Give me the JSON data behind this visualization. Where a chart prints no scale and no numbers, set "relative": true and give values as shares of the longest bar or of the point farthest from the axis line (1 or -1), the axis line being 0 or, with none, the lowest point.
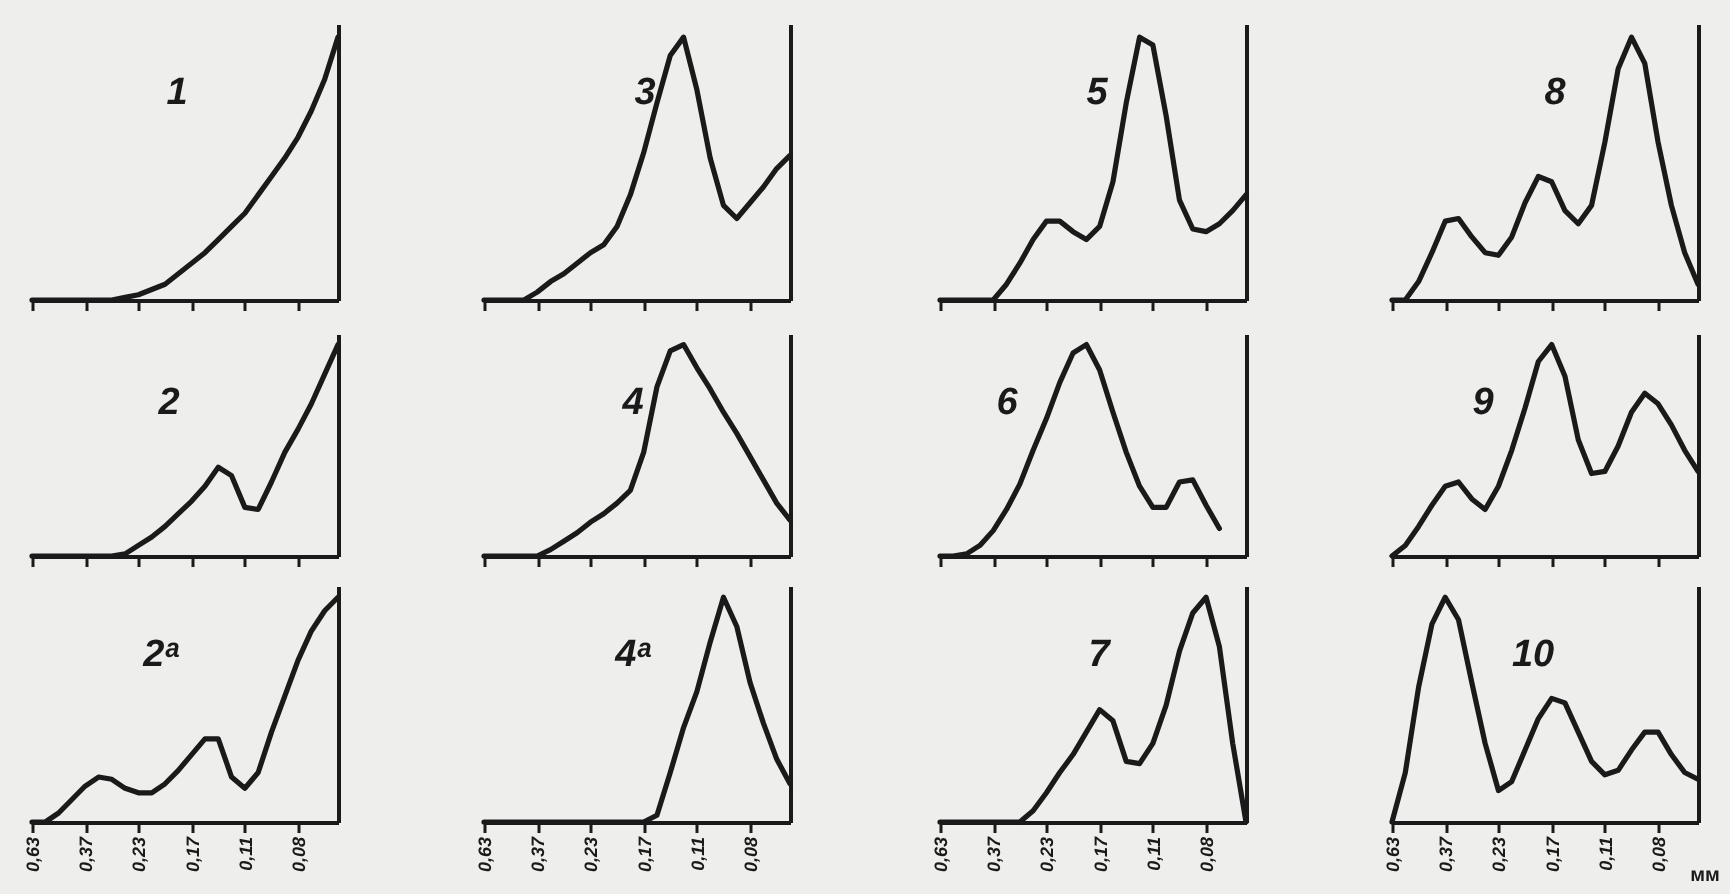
{
  "chart_data": [
    {
      "type": "line",
      "title": "1",
      "relative": true,
      "categories": [
        "0,63",
        null,
        null,
        null,
        "0,37",
        null,
        null,
        null,
        "0,23",
        null,
        null,
        null,
        "0,17",
        null,
        null,
        null,
        "0,11",
        null,
        null,
        null,
        "0,08",
        null,
        null,
        null
      ],
      "tick_labels": false,
      "series": [
        {
          "color": "#1a1a1a",
          "values": [
            0,
            0,
            0,
            0,
            0,
            0,
            0,
            0.01,
            0.02,
            0.04,
            0.06,
            0.1,
            0.14,
            0.18,
            0.23,
            0.28,
            0.33,
            0.4,
            0.47,
            0.54,
            0.62,
            0.72,
            0.84,
            1
          ]
        }
      ]
    },
    {
      "type": "line",
      "title": "3",
      "relative": true,
      "categories": [
        "0,63",
        null,
        null,
        null,
        "0,37",
        null,
        null,
        null,
        "0,23",
        null,
        null,
        null,
        "0,17",
        null,
        null,
        null,
        "0,11",
        null,
        null,
        null,
        "0,08",
        null,
        null,
        null
      ],
      "tick_labels": false,
      "series": [
        {
          "color": "#1a1a1a",
          "values": [
            0,
            0,
            0,
            0,
            0.03,
            0.07,
            0.1,
            0.14,
            0.18,
            0.21,
            0.28,
            0.4,
            0.56,
            0.75,
            0.93,
            1,
            0.8,
            0.54,
            0.36,
            0.31,
            0.37,
            0.43,
            0.5,
            0.55
          ]
        }
      ]
    },
    {
      "type": "line",
      "title": "5",
      "relative": true,
      "categories": [
        "0,63",
        null,
        null,
        null,
        "0,37",
        null,
        null,
        null,
        "0,23",
        null,
        null,
        null,
        "0,17",
        null,
        null,
        null,
        "0,11",
        null,
        null,
        null,
        "0,08",
        null,
        null,
        null
      ],
      "tick_labels": false,
      "series": [
        {
          "color": "#1a1a1a",
          "values": [
            0,
            0,
            0,
            0,
            0,
            0.06,
            0.14,
            0.23,
            0.3,
            0.3,
            0.26,
            0.23,
            0.28,
            0.45,
            0.75,
            1,
            0.97,
            0.7,
            0.38,
            0.27,
            0.26,
            0.29,
            0.34,
            0.4
          ]
        }
      ]
    },
    {
      "type": "line",
      "title": "8",
      "relative": true,
      "categories": [
        "0,63",
        null,
        null,
        null,
        "0,37",
        null,
        null,
        null,
        "0,23",
        null,
        null,
        null,
        "0,17",
        null,
        null,
        null,
        "0,11",
        null,
        null,
        null,
        "0,08",
        null,
        null,
        null
      ],
      "tick_labels": false,
      "series": [
        {
          "color": "#1a1a1a",
          "values": [
            0,
            0,
            0.07,
            0.18,
            0.3,
            0.31,
            0.24,
            0.18,
            0.17,
            0.24,
            0.37,
            0.47,
            0.45,
            0.34,
            0.29,
            0.36,
            0.6,
            0.88,
            1,
            0.9,
            0.6,
            0.36,
            0.18,
            0.06
          ]
        }
      ]
    },
    {
      "type": "line",
      "title": "2",
      "relative": true,
      "categories": [
        "0,63",
        null,
        null,
        null,
        "0,37",
        null,
        null,
        null,
        "0,23",
        null,
        null,
        null,
        "0,17",
        null,
        null,
        null,
        "0,11",
        null,
        null,
        null,
        "0,08",
        null,
        null,
        null
      ],
      "tick_labels": false,
      "series": [
        {
          "color": "#1a1a1a",
          "values": [
            0,
            0,
            0,
            0,
            0,
            0,
            0,
            0.01,
            0.05,
            0.09,
            0.14,
            0.2,
            0.26,
            0.33,
            0.42,
            0.38,
            0.23,
            0.22,
            0.35,
            0.49,
            0.6,
            0.72,
            0.86,
            1
          ]
        }
      ]
    },
    {
      "type": "line",
      "title": "4",
      "relative": true,
      "categories": [
        "0,63",
        null,
        null,
        null,
        "0,37",
        null,
        null,
        null,
        "0,23",
        null,
        null,
        null,
        "0,17",
        null,
        null,
        null,
        "0,11",
        null,
        null,
        null,
        "0,08",
        null,
        null,
        null
      ],
      "tick_labels": false,
      "series": [
        {
          "color": "#1a1a1a",
          "values": [
            0,
            0,
            0,
            0,
            0,
            0.03,
            0.07,
            0.11,
            0.16,
            0.2,
            0.25,
            0.31,
            0.49,
            0.8,
            0.97,
            1,
            0.89,
            0.79,
            0.68,
            0.58,
            0.47,
            0.36,
            0.25,
            0.17
          ]
        }
      ]
    },
    {
      "type": "line",
      "title": "6",
      "relative": true,
      "categories": [
        "0,63",
        null,
        null,
        null,
        "0,37",
        null,
        null,
        null,
        "0,23",
        null,
        null,
        null,
        "0,17",
        null,
        null,
        null,
        "0,11",
        null,
        null,
        null,
        "0,08",
        null,
        null,
        null
      ],
      "tick_labels": false,
      "series": [
        {
          "color": "#1a1a1a",
          "values": [
            0,
            0,
            0.01,
            0.05,
            0.12,
            0.22,
            0.34,
            0.5,
            0.65,
            0.82,
            0.96,
            1,
            0.88,
            0.68,
            0.49,
            0.33,
            0.23,
            0.23,
            0.35,
            0.36,
            0.24,
            0.13,
            null,
            null
          ]
        }
      ]
    },
    {
      "type": "line",
      "title": "9",
      "relative": true,
      "categories": [
        "0,63",
        null,
        null,
        null,
        "0,37",
        null,
        null,
        null,
        "0,23",
        null,
        null,
        null,
        "0,17",
        null,
        null,
        null,
        "0,11",
        null,
        null,
        null,
        "0,08",
        null,
        null,
        null
      ],
      "tick_labels": false,
      "series": [
        {
          "color": "#1a1a1a",
          "values": [
            0,
            0.05,
            0.14,
            0.24,
            0.33,
            0.35,
            0.27,
            0.22,
            0.33,
            0.5,
            0.7,
            0.92,
            1,
            0.85,
            0.55,
            0.39,
            0.4,
            0.52,
            0.68,
            0.77,
            0.72,
            0.62,
            0.5,
            0.4
          ]
        }
      ]
    },
    {
      "type": "line",
      "title": "2ᵃ",
      "relative": true,
      "categories": [
        "0,63",
        null,
        null,
        null,
        "0,37",
        null,
        null,
        null,
        "0,23",
        null,
        null,
        null,
        "0,17",
        null,
        null,
        null,
        "0,11",
        null,
        null,
        null,
        "0,08",
        null,
        null,
        null
      ],
      "series": [
        {
          "color": "#1a1a1a",
          "values": [
            0,
            0,
            0.04,
            0.1,
            0.16,
            0.2,
            0.19,
            0.15,
            0.13,
            0.13,
            0.17,
            0.23,
            0.3,
            0.37,
            0.37,
            0.2,
            0.15,
            0.22,
            0.4,
            0.56,
            0.72,
            0.85,
            0.94,
            1
          ]
        }
      ]
    },
    {
      "type": "line",
      "title": "4ᵃ",
      "relative": true,
      "categories": [
        "0,63",
        null,
        null,
        null,
        "0,37",
        null,
        null,
        null,
        "0,23",
        null,
        null,
        null,
        "0,17",
        null,
        null,
        null,
        "0,11",
        null,
        null,
        null,
        "0,08",
        null,
        null,
        null
      ],
      "series": [
        {
          "color": "#1a1a1a",
          "values": [
            0,
            0,
            0,
            0,
            0,
            0,
            0,
            0,
            0,
            0,
            0,
            0,
            0,
            0.03,
            0.22,
            0.42,
            0.58,
            0.8,
            1,
            0.87,
            0.62,
            0.44,
            0.28,
            0.17
          ]
        }
      ]
    },
    {
      "type": "line",
      "title": "7",
      "relative": true,
      "categories": [
        "0,63",
        null,
        null,
        null,
        "0,37",
        null,
        null,
        null,
        "0,23",
        null,
        null,
        null,
        "0,17",
        null,
        null,
        null,
        "0,11",
        null,
        null,
        null,
        "0,08",
        null,
        null,
        null
      ],
      "series": [
        {
          "color": "#1a1a1a",
          "values": [
            0,
            0,
            0,
            0,
            0,
            0,
            0,
            0.05,
            0.13,
            0.22,
            0.3,
            0.4,
            0.5,
            0.45,
            0.27,
            0.26,
            0.35,
            0.52,
            0.76,
            0.93,
            1,
            0.78,
            0.35,
            0
          ]
        }
      ]
    },
    {
      "type": "line",
      "title": "10",
      "relative": true,
      "categories": [
        "0,63",
        null,
        null,
        null,
        "0,37",
        null,
        null,
        null,
        "0,23",
        null,
        null,
        null,
        "0,17",
        null,
        null,
        null,
        "0,11",
        null,
        null,
        null,
        "0,08",
        null,
        null,
        null
      ],
      "xlabel": "мм",
      "series": [
        {
          "color": "#1a1a1a",
          "values": [
            0,
            0.22,
            0.6,
            0.88,
            1,
            0.9,
            0.62,
            0.35,
            0.14,
            0.18,
            0.32,
            0.46,
            0.55,
            0.53,
            0.4,
            0.27,
            0.21,
            0.23,
            0.32,
            0.4,
            0.4,
            0.3,
            0.22,
            0.19
          ]
        }
      ]
    }
  ]
}
